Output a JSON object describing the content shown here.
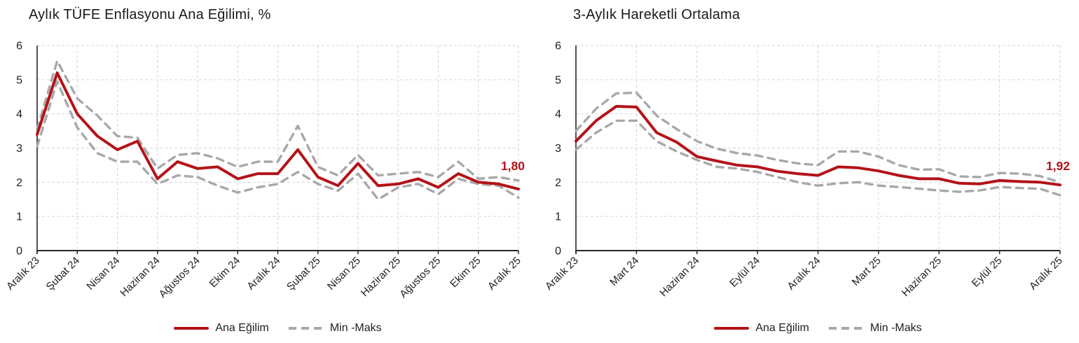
{
  "colors": {
    "main_line": "#b31318",
    "band_line": "#a8a8a8",
    "grid": "#d6d6d6",
    "axis": "#262626",
    "text": "#1f1f1f",
    "title": "#1a1a1a",
    "background": "#ffffff"
  },
  "chart_data": [
    {
      "type": "line",
      "title": "Aylık TÜFE Enflasyonu Ana Eğilimi, %",
      "categories": [
        "Aralık 23",
        "Ocak 24",
        "Şubat 24",
        "Mart 24",
        "Nisan 24",
        "Mayıs 24",
        "Haziran 24",
        "Temmuz 24",
        "Ağustos 24",
        "Eylül 24",
        "Ekim 24",
        "Kasım 24",
        "Aralık 24",
        "Ocak 25",
        "Şubat 25",
        "Mart 25",
        "Nisan 25",
        "Mayıs 25",
        "Haziran 25",
        "Temmuz 25",
        "Ağustos 25",
        "Eylül 25",
        "Ekim 25",
        "Kasım 25",
        "Aralık 25"
      ],
      "x_tick_step": 2,
      "x_tick_labels": [
        "Aralık 23",
        "Şubat 24",
        "Nisan 24",
        "Haziran 24",
        "Ağustos 24",
        "Ekim 24",
        "Aralık 24",
        "Şubat 25",
        "Nisan 25",
        "Haziran 25",
        "Ağustos 25",
        "Ekim 25",
        "Aralık 25"
      ],
      "ylim": [
        0,
        6
      ],
      "yticks": [
        0,
        1,
        2,
        3,
        4,
        5,
        6
      ],
      "grid": true,
      "legend_position": "bottom",
      "series": [
        {
          "name": "Ana Eğilim",
          "style": "solid",
          "values": [
            3.4,
            5.2,
            4.0,
            3.35,
            2.95,
            3.2,
            2.1,
            2.6,
            2.4,
            2.45,
            2.1,
            2.25,
            2.25,
            2.95,
            2.15,
            1.9,
            2.55,
            1.9,
            1.95,
            2.1,
            1.85,
            2.25,
            2.0,
            1.95,
            1.8
          ]
        },
        {
          "name": "Maks",
          "style": "dashed",
          "values": [
            3.55,
            5.55,
            4.45,
            3.95,
            3.35,
            3.3,
            2.4,
            2.8,
            2.85,
            2.7,
            2.45,
            2.6,
            2.6,
            3.65,
            2.45,
            2.2,
            2.8,
            2.2,
            2.25,
            2.3,
            2.15,
            2.6,
            2.1,
            2.15,
            2.05
          ]
        },
        {
          "name": "Min",
          "style": "dashed",
          "values": [
            3.05,
            4.95,
            3.6,
            2.85,
            2.6,
            2.6,
            1.95,
            2.2,
            2.15,
            1.9,
            1.7,
            1.85,
            1.95,
            2.3,
            1.95,
            1.75,
            2.25,
            1.5,
            1.85,
            1.95,
            1.65,
            2.1,
            1.95,
            1.9,
            1.55
          ]
        }
      ],
      "end_label": "1,80",
      "legend": [
        {
          "label": "Ana Eğilim",
          "style": "solid"
        },
        {
          "label": "Min -Maks",
          "style": "dashed"
        }
      ]
    },
    {
      "type": "line",
      "title": "3-Aylık Hareketli Ortalama",
      "categories": [
        "Aralık 23",
        "Ocak 24",
        "Şubat 24",
        "Mart 24",
        "Nisan 24",
        "Mayıs 24",
        "Haziran 24",
        "Temmuz 24",
        "Ağustos 24",
        "Eylül 24",
        "Ekim 24",
        "Kasım 24",
        "Aralık 24",
        "Ocak 25",
        "Şubat 25",
        "Mart 25",
        "Nisan 25",
        "Mayıs 25",
        "Haziran 25",
        "Temmuz 25",
        "Ağustos 25",
        "Eylül 25",
        "Ekim 25",
        "Kasım 25",
        "Aralık 25"
      ],
      "x_tick_step": 3,
      "x_tick_labels": [
        "Aralık 23",
        "Mart 24",
        "Haziran 24",
        "Eylül 24",
        "Aralık 24",
        "Mart 25",
        "Haziran 25",
        "Eylül 25",
        "Aralık 25"
      ],
      "ylim": [
        0,
        6
      ],
      "yticks": [
        0,
        1,
        2,
        3,
        4,
        5,
        6
      ],
      "grid": true,
      "legend_position": "bottom",
      "series": [
        {
          "name": "Ana Eğilim",
          "style": "solid",
          "values": [
            3.2,
            3.8,
            4.22,
            4.2,
            3.45,
            3.17,
            2.75,
            2.62,
            2.5,
            2.45,
            2.32,
            2.25,
            2.2,
            2.45,
            2.42,
            2.33,
            2.2,
            2.1,
            2.1,
            1.97,
            1.95,
            2.05,
            2.02,
            2.0,
            1.92
          ]
        },
        {
          "name": "Maks",
          "style": "dashed",
          "values": [
            3.5,
            4.15,
            4.6,
            4.62,
            3.95,
            3.55,
            3.2,
            2.98,
            2.85,
            2.78,
            2.65,
            2.55,
            2.5,
            2.9,
            2.9,
            2.75,
            2.5,
            2.37,
            2.38,
            2.17,
            2.15,
            2.27,
            2.25,
            2.18,
            2.0
          ]
        },
        {
          "name": "Min",
          "style": "dashed",
          "values": [
            2.95,
            3.45,
            3.8,
            3.8,
            3.2,
            2.9,
            2.65,
            2.45,
            2.4,
            2.3,
            2.15,
            2.0,
            1.9,
            1.97,
            2.0,
            1.9,
            1.86,
            1.81,
            1.76,
            1.72,
            1.76,
            1.86,
            1.83,
            1.81,
            1.62
          ]
        }
      ],
      "end_label": "1,92",
      "legend": [
        {
          "label": "Ana Eğilim",
          "style": "solid"
        },
        {
          "label": "Min -Maks",
          "style": "dashed"
        }
      ]
    }
  ]
}
